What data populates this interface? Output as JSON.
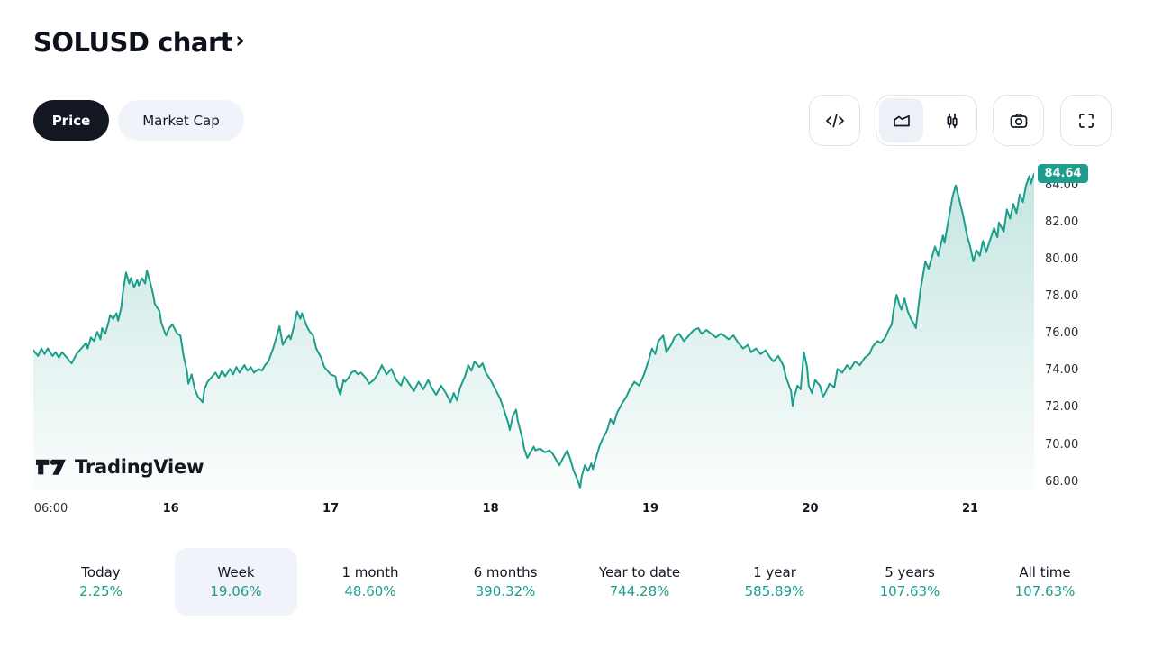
{
  "header": {
    "title": "SOLUSD chart",
    "chevron": "›"
  },
  "toggle": {
    "price": "Price",
    "market_cap": "Market Cap"
  },
  "toolbar": {
    "buttons": [
      {
        "name": "embed-code"
      },
      {
        "name": "area-chart",
        "selected": true
      },
      {
        "name": "candlestick",
        "selected": false
      },
      {
        "name": "screenshot"
      },
      {
        "name": "fullscreen"
      }
    ]
  },
  "watermark": {
    "brand": "TradingView"
  },
  "chart_data": {
    "type": "area",
    "title": "SOLUSD chart",
    "symbol": "SOLUSD",
    "last_price": "84.64",
    "line_color": "#1d9d8b",
    "badge_color": "#1d9d8b",
    "xlabel": "",
    "ylabel": "",
    "grid": false,
    "legend": "none",
    "xlim": [
      15.14,
      21.4
    ],
    "ylim": [
      67.5,
      85.1
    ],
    "y_ticks": [
      "84.00",
      "82.00",
      "80.00",
      "78.00",
      "76.00",
      "74.00",
      "72.00",
      "70.00",
      "68.00"
    ],
    "x_ticks": [
      {
        "label": "06:00",
        "t": 15.25,
        "bold": false
      },
      {
        "label": "16",
        "t": 16,
        "bold": true
      },
      {
        "label": "17",
        "t": 17,
        "bold": true
      },
      {
        "label": "18",
        "t": 18,
        "bold": true
      },
      {
        "label": "19",
        "t": 19,
        "bold": true
      },
      {
        "label": "20",
        "t": 20,
        "bold": true
      },
      {
        "label": "21",
        "t": 21,
        "bold": true
      }
    ],
    "points": [
      [
        15.14,
        75.1
      ],
      [
        15.17,
        74.8
      ],
      [
        15.19,
        75.2
      ],
      [
        15.21,
        74.9
      ],
      [
        15.23,
        75.2
      ],
      [
        15.26,
        74.8
      ],
      [
        15.28,
        75.0
      ],
      [
        15.3,
        74.7
      ],
      [
        15.32,
        75.0
      ],
      [
        15.35,
        74.7
      ],
      [
        15.38,
        74.4
      ],
      [
        15.41,
        74.9
      ],
      [
        15.44,
        75.2
      ],
      [
        15.47,
        75.5
      ],
      [
        15.48,
        75.2
      ],
      [
        15.5,
        75.8
      ],
      [
        15.52,
        75.6
      ],
      [
        15.54,
        76.1
      ],
      [
        15.56,
        75.7
      ],
      [
        15.57,
        76.3
      ],
      [
        15.59,
        76.0
      ],
      [
        15.61,
        76.6
      ],
      [
        15.62,
        77.0
      ],
      [
        15.64,
        76.8
      ],
      [
        15.66,
        77.1
      ],
      [
        15.67,
        76.7
      ],
      [
        15.69,
        77.4
      ],
      [
        15.7,
        78.2
      ],
      [
        15.72,
        79.3
      ],
      [
        15.74,
        78.7
      ],
      [
        15.75,
        79.0
      ],
      [
        15.77,
        78.5
      ],
      [
        15.79,
        78.9
      ],
      [
        15.8,
        78.6
      ],
      [
        15.82,
        79.0
      ],
      [
        15.84,
        78.7
      ],
      [
        15.85,
        79.4
      ],
      [
        15.87,
        78.8
      ],
      [
        15.89,
        78.1
      ],
      [
        15.9,
        77.6
      ],
      [
        15.93,
        77.2
      ],
      [
        15.94,
        76.6
      ],
      [
        15.97,
        75.9
      ],
      [
        15.99,
        76.3
      ],
      [
        16.01,
        76.5
      ],
      [
        16.04,
        76.0
      ],
      [
        16.06,
        75.9
      ],
      [
        16.08,
        74.8
      ],
      [
        16.1,
        74.0
      ],
      [
        16.11,
        73.3
      ],
      [
        16.13,
        73.8
      ],
      [
        16.15,
        73.0
      ],
      [
        16.17,
        72.6
      ],
      [
        16.2,
        72.3
      ],
      [
        16.21,
        73.0
      ],
      [
        16.23,
        73.4
      ],
      [
        16.25,
        73.6
      ],
      [
        16.28,
        73.9
      ],
      [
        16.3,
        73.6
      ],
      [
        16.32,
        74.0
      ],
      [
        16.34,
        73.7
      ],
      [
        16.37,
        74.1
      ],
      [
        16.39,
        73.8
      ],
      [
        16.41,
        74.2
      ],
      [
        16.43,
        73.9
      ],
      [
        16.46,
        74.3
      ],
      [
        16.48,
        74.0
      ],
      [
        16.5,
        74.2
      ],
      [
        16.52,
        73.9
      ],
      [
        16.55,
        74.1
      ],
      [
        16.57,
        74.0
      ],
      [
        16.59,
        74.3
      ],
      [
        16.61,
        74.5
      ],
      [
        16.64,
        75.2
      ],
      [
        16.66,
        75.8
      ],
      [
        16.68,
        76.4
      ],
      [
        16.69,
        75.9
      ],
      [
        16.7,
        75.4
      ],
      [
        16.72,
        75.7
      ],
      [
        16.74,
        75.9
      ],
      [
        16.75,
        75.7
      ],
      [
        16.77,
        76.4
      ],
      [
        16.79,
        77.2
      ],
      [
        16.81,
        76.8
      ],
      [
        16.82,
        77.1
      ],
      [
        16.85,
        76.4
      ],
      [
        16.87,
        76.1
      ],
      [
        16.89,
        75.9
      ],
      [
        16.91,
        75.2
      ],
      [
        16.94,
        74.7
      ],
      [
        16.96,
        74.2
      ],
      [
        16.98,
        74.0
      ],
      [
        17.0,
        73.8
      ],
      [
        17.03,
        73.7
      ],
      [
        17.04,
        73.2
      ],
      [
        17.06,
        72.7
      ],
      [
        17.08,
        73.5
      ],
      [
        17.09,
        73.4
      ],
      [
        17.11,
        73.6
      ],
      [
        17.13,
        73.9
      ],
      [
        17.15,
        74.0
      ],
      [
        17.17,
        73.8
      ],
      [
        17.19,
        73.9
      ],
      [
        17.22,
        73.6
      ],
      [
        17.24,
        73.3
      ],
      [
        17.27,
        73.5
      ],
      [
        17.3,
        73.9
      ],
      [
        17.32,
        74.3
      ],
      [
        17.35,
        73.8
      ],
      [
        17.38,
        74.1
      ],
      [
        17.41,
        73.5
      ],
      [
        17.44,
        73.2
      ],
      [
        17.46,
        73.7
      ],
      [
        17.49,
        73.3
      ],
      [
        17.52,
        72.9
      ],
      [
        17.55,
        73.4
      ],
      [
        17.58,
        73.0
      ],
      [
        17.61,
        73.5
      ],
      [
        17.63,
        73.1
      ],
      [
        17.66,
        72.7
      ],
      [
        17.69,
        73.2
      ],
      [
        17.72,
        72.8
      ],
      [
        17.75,
        72.3
      ],
      [
        17.77,
        72.8
      ],
      [
        17.79,
        72.4
      ],
      [
        17.81,
        73.1
      ],
      [
        17.84,
        73.7
      ],
      [
        17.86,
        74.3
      ],
      [
        17.88,
        74.0
      ],
      [
        17.9,
        74.5
      ],
      [
        17.93,
        74.2
      ],
      [
        17.95,
        74.4
      ],
      [
        17.97,
        73.9
      ],
      [
        18.0,
        73.5
      ],
      [
        18.03,
        73.0
      ],
      [
        18.06,
        72.5
      ],
      [
        18.08,
        72.0
      ],
      [
        18.11,
        71.2
      ],
      [
        18.12,
        70.8
      ],
      [
        18.14,
        71.6
      ],
      [
        18.16,
        71.9
      ],
      [
        18.17,
        71.3
      ],
      [
        18.2,
        70.3
      ],
      [
        18.21,
        69.8
      ],
      [
        18.23,
        69.3
      ],
      [
        18.25,
        69.6
      ],
      [
        18.27,
        69.9
      ],
      [
        18.28,
        69.7
      ],
      [
        18.31,
        69.8
      ],
      [
        18.34,
        69.6
      ],
      [
        18.37,
        69.7
      ],
      [
        18.39,
        69.5
      ],
      [
        18.41,
        69.2
      ],
      [
        18.43,
        68.9
      ],
      [
        18.46,
        69.4
      ],
      [
        18.48,
        69.7
      ],
      [
        18.5,
        69.2
      ],
      [
        18.52,
        68.6
      ],
      [
        18.54,
        68.2
      ],
      [
        18.56,
        67.7
      ],
      [
        18.57,
        68.3
      ],
      [
        18.59,
        68.9
      ],
      [
        18.61,
        68.6
      ],
      [
        18.63,
        69.0
      ],
      [
        18.64,
        68.7
      ],
      [
        18.66,
        69.3
      ],
      [
        18.68,
        69.9
      ],
      [
        18.7,
        70.3
      ],
      [
        18.73,
        70.8
      ],
      [
        18.75,
        71.4
      ],
      [
        18.77,
        71.1
      ],
      [
        18.79,
        71.7
      ],
      [
        18.82,
        72.2
      ],
      [
        18.85,
        72.6
      ],
      [
        18.87,
        73.0
      ],
      [
        18.9,
        73.4
      ],
      [
        18.93,
        73.2
      ],
      [
        18.96,
        73.8
      ],
      [
        18.99,
        74.6
      ],
      [
        19.01,
        75.2
      ],
      [
        19.03,
        74.9
      ],
      [
        19.05,
        75.6
      ],
      [
        19.08,
        75.9
      ],
      [
        19.1,
        75.0
      ],
      [
        19.13,
        75.4
      ],
      [
        19.15,
        75.8
      ],
      [
        19.18,
        76.0
      ],
      [
        19.21,
        75.6
      ],
      [
        19.24,
        75.9
      ],
      [
        19.27,
        76.2
      ],
      [
        19.3,
        76.3
      ],
      [
        19.32,
        76.0
      ],
      [
        19.35,
        76.2
      ],
      [
        19.38,
        76.0
      ],
      [
        19.41,
        75.8
      ],
      [
        19.44,
        76.0
      ],
      [
        19.46,
        75.9
      ],
      [
        19.49,
        75.7
      ],
      [
        19.52,
        75.9
      ],
      [
        19.55,
        75.5
      ],
      [
        19.58,
        75.2
      ],
      [
        19.61,
        75.4
      ],
      [
        19.63,
        75.0
      ],
      [
        19.66,
        75.2
      ],
      [
        19.69,
        74.9
      ],
      [
        19.72,
        75.1
      ],
      [
        19.75,
        74.7
      ],
      [
        19.77,
        74.5
      ],
      [
        19.8,
        74.8
      ],
      [
        19.83,
        74.3
      ],
      [
        19.85,
        73.6
      ],
      [
        19.88,
        72.9
      ],
      [
        19.89,
        72.1
      ],
      [
        19.9,
        72.6
      ],
      [
        19.92,
        73.2
      ],
      [
        19.94,
        73.0
      ],
      [
        19.96,
        75.0
      ],
      [
        19.98,
        74.2
      ],
      [
        19.99,
        73.2
      ],
      [
        20.01,
        72.8
      ],
      [
        20.03,
        73.5
      ],
      [
        20.06,
        73.2
      ],
      [
        20.08,
        72.6
      ],
      [
        20.1,
        72.9
      ],
      [
        20.12,
        73.3
      ],
      [
        20.15,
        73.1
      ],
      [
        20.17,
        74.1
      ],
      [
        20.2,
        73.9
      ],
      [
        20.23,
        74.3
      ],
      [
        20.25,
        74.1
      ],
      [
        20.28,
        74.5
      ],
      [
        20.31,
        74.3
      ],
      [
        20.34,
        74.7
      ],
      [
        20.37,
        74.9
      ],
      [
        20.39,
        75.3
      ],
      [
        20.42,
        75.6
      ],
      [
        20.44,
        75.5
      ],
      [
        20.47,
        75.8
      ],
      [
        20.49,
        76.2
      ],
      [
        20.51,
        76.5
      ],
      [
        20.52,
        77.2
      ],
      [
        20.54,
        78.1
      ],
      [
        20.56,
        77.5
      ],
      [
        20.57,
        77.3
      ],
      [
        20.59,
        77.9
      ],
      [
        20.61,
        77.2
      ],
      [
        20.63,
        76.8
      ],
      [
        20.65,
        76.5
      ],
      [
        20.66,
        76.3
      ],
      [
        20.69,
        78.4
      ],
      [
        20.72,
        79.9
      ],
      [
        20.74,
        79.5
      ],
      [
        20.78,
        80.7
      ],
      [
        20.8,
        80.2
      ],
      [
        20.83,
        81.3
      ],
      [
        20.84,
        80.9
      ],
      [
        20.87,
        82.4
      ],
      [
        20.89,
        83.4
      ],
      [
        20.91,
        84.0
      ],
      [
        20.93,
        83.3
      ],
      [
        20.95,
        82.6
      ],
      [
        20.96,
        82.2
      ],
      [
        20.98,
        81.3
      ],
      [
        21.0,
        80.7
      ],
      [
        21.02,
        79.9
      ],
      [
        21.04,
        80.5
      ],
      [
        21.06,
        80.2
      ],
      [
        21.08,
        81.0
      ],
      [
        21.1,
        80.4
      ],
      [
        21.13,
        81.2
      ],
      [
        21.15,
        81.7
      ],
      [
        21.17,
        81.2
      ],
      [
        21.18,
        82.0
      ],
      [
        21.21,
        81.5
      ],
      [
        21.23,
        82.7
      ],
      [
        21.25,
        82.2
      ],
      [
        21.27,
        83.0
      ],
      [
        21.29,
        82.5
      ],
      [
        21.31,
        83.5
      ],
      [
        21.33,
        83.1
      ],
      [
        21.35,
        84.0
      ],
      [
        21.37,
        84.5
      ],
      [
        21.38,
        84.1
      ],
      [
        21.4,
        84.64
      ]
    ]
  },
  "ranges": [
    {
      "label": "Today",
      "value": "2.25%",
      "selected": false
    },
    {
      "label": "Week",
      "value": "19.06%",
      "selected": true
    },
    {
      "label": "1 month",
      "value": "48.60%",
      "selected": false
    },
    {
      "label": "6 months",
      "value": "390.32%",
      "selected": false
    },
    {
      "label": "Year to date",
      "value": "744.28%",
      "selected": false
    },
    {
      "label": "1 year",
      "value": "585.89%",
      "selected": false
    },
    {
      "label": "5 years",
      "value": "107.63%",
      "selected": false
    },
    {
      "label": "All time",
      "value": "107.63%",
      "selected": false
    }
  ]
}
